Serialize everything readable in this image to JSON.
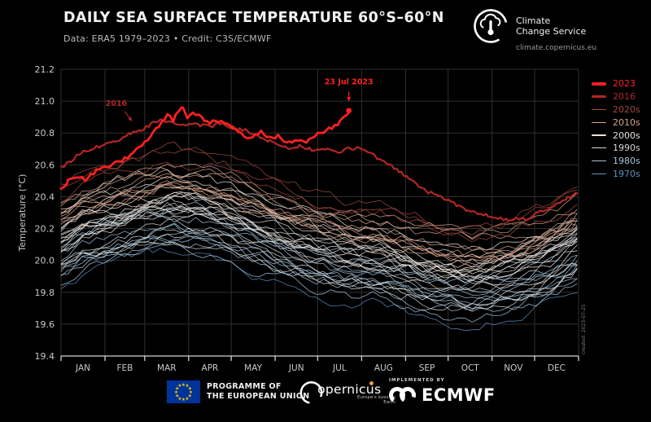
{
  "logo": {
    "name_line1": "Climate",
    "name_line2": "Change Service",
    "url": "climate.copernicus.eu"
  },
  "footer": {
    "eu_label_line1": "PROGRAMME OF",
    "eu_label_line2": "THE EUROPEAN UNION",
    "copernicus_word": "opernicus",
    "copernicus_tagline": "Europe's eyes on Earth",
    "implemented_by": "IMPLEMENTED BY",
    "ecmwf": "ECMWF"
  },
  "chart_data": {
    "type": "line",
    "title": "DAILY SEA SURFACE TEMPERATURE 60°S–60°N",
    "subtitle": "Data: ERA5 1979–2023 • Credit: C3S/ECMWF",
    "xlabel": "",
    "ylabel": "Temperature (°C)",
    "ylim": [
      19.4,
      21.2
    ],
    "ytick_step": 0.2,
    "grid": true,
    "legend_position": "right-outside",
    "watermark": "created: 2023-07-25",
    "x_months": [
      "JAN",
      "FEB",
      "MAR",
      "APR",
      "MAY",
      "JUN",
      "JUL",
      "AUG",
      "SEP",
      "OCT",
      "NOV",
      "DEC"
    ],
    "month_start_days": [
      1,
      32,
      60,
      91,
      121,
      152,
      182,
      213,
      244,
      274,
      305,
      335,
      366
    ],
    "legend": [
      {
        "label": "2023",
        "color": "#ff2020",
        "weight": 4
      },
      {
        "label": "2016",
        "color": "#b42525",
        "weight": 3
      },
      {
        "label": "2020s",
        "color": "#a34a40",
        "weight": 1.2
      },
      {
        "label": "2010s",
        "color": "#d8a48e",
        "weight": 1.2
      },
      {
        "label": "2000s",
        "color": "#eae1da",
        "weight": 1.2
      },
      {
        "label": "1990s",
        "color": "#d3d7d8",
        "weight": 1.2
      },
      {
        "label": "1980s",
        "color": "#a6c6de",
        "weight": 1.2
      },
      {
        "label": "1970s",
        "color": "#5e90c1",
        "weight": 1.2
      }
    ],
    "annotations": [
      {
        "text": "2016",
        "color": "#b42525",
        "text_day": 40,
        "text_val": 20.97,
        "arrow": {
          "x1_day": 46,
          "y1": 20.935,
          "x2_day": 51,
          "y2": 20.875
        }
      },
      {
        "text": "23 Jul 2023",
        "color": "#ff2020",
        "text_day": 204,
        "text_val": 21.105,
        "arrow": {
          "x1_day": 204,
          "y1": 21.06,
          "x2_day": 204,
          "y2": 21.0
        }
      }
    ],
    "series": [
      {
        "name": "2023",
        "color": "#ff2020",
        "width": 2.8,
        "end_dot": true,
        "points": [
          [
            1,
            20.44
          ],
          [
            6,
            20.5
          ],
          [
            12,
            20.52
          ],
          [
            18,
            20.51
          ],
          [
            24,
            20.55
          ],
          [
            30,
            20.58
          ],
          [
            36,
            20.6
          ],
          [
            42,
            20.62
          ],
          [
            48,
            20.65
          ],
          [
            54,
            20.69
          ],
          [
            60,
            20.74
          ],
          [
            66,
            20.8
          ],
          [
            72,
            20.86
          ],
          [
            76,
            20.91
          ],
          [
            80,
            20.88
          ],
          [
            84,
            20.94
          ],
          [
            87,
            20.96
          ],
          [
            90,
            20.9
          ],
          [
            94,
            20.93
          ],
          [
            98,
            20.91
          ],
          [
            102,
            20.88
          ],
          [
            106,
            20.86
          ],
          [
            110,
            20.88
          ],
          [
            114,
            20.87
          ],
          [
            118,
            20.85
          ],
          [
            122,
            20.83
          ],
          [
            126,
            20.81
          ],
          [
            130,
            20.78
          ],
          [
            134,
            20.77
          ],
          [
            138,
            20.79
          ],
          [
            142,
            20.81
          ],
          [
            146,
            20.78
          ],
          [
            150,
            20.76
          ],
          [
            154,
            20.78
          ],
          [
            158,
            20.75
          ],
          [
            162,
            20.74
          ],
          [
            166,
            20.76
          ],
          [
            170,
            20.75
          ],
          [
            174,
            20.74
          ],
          [
            178,
            20.77
          ],
          [
            182,
            20.79
          ],
          [
            186,
            20.81
          ],
          [
            190,
            20.83
          ],
          [
            194,
            20.84
          ],
          [
            198,
            20.87
          ],
          [
            201,
            20.9
          ],
          [
            204,
            20.94
          ]
        ]
      },
      {
        "name": "2016",
        "color": "#b42525",
        "width": 2.2,
        "end_dot": false,
        "points": [
          [
            1,
            20.58
          ],
          [
            8,
            20.62
          ],
          [
            15,
            20.68
          ],
          [
            22,
            20.7
          ],
          [
            29,
            20.72
          ],
          [
            36,
            20.74
          ],
          [
            43,
            20.76
          ],
          [
            50,
            20.8
          ],
          [
            57,
            20.82
          ],
          [
            64,
            20.85
          ],
          [
            71,
            20.89
          ],
          [
            78,
            20.87
          ],
          [
            85,
            20.84
          ],
          [
            92,
            20.86
          ],
          [
            99,
            20.85
          ],
          [
            106,
            20.84
          ],
          [
            113,
            20.86
          ],
          [
            120,
            20.84
          ],
          [
            127,
            20.82
          ],
          [
            134,
            20.81
          ],
          [
            141,
            20.78
          ],
          [
            148,
            20.75
          ],
          [
            155,
            20.72
          ],
          [
            162,
            20.7
          ],
          [
            169,
            20.72
          ],
          [
            176,
            20.7
          ],
          [
            183,
            20.69
          ],
          [
            190,
            20.7
          ],
          [
            197,
            20.68
          ],
          [
            204,
            20.7
          ],
          [
            211,
            20.71
          ],
          [
            218,
            20.68
          ],
          [
            225,
            20.64
          ],
          [
            232,
            20.6
          ],
          [
            239,
            20.56
          ],
          [
            246,
            20.52
          ],
          [
            253,
            20.47
          ],
          [
            260,
            20.43
          ],
          [
            267,
            20.4
          ],
          [
            274,
            20.38
          ],
          [
            281,
            20.34
          ],
          [
            288,
            20.31
          ],
          [
            295,
            20.3
          ],
          [
            302,
            20.28
          ],
          [
            309,
            20.27
          ],
          [
            316,
            20.25
          ],
          [
            323,
            20.27
          ],
          [
            330,
            20.26
          ],
          [
            337,
            20.3
          ],
          [
            344,
            20.33
          ],
          [
            351,
            20.36
          ],
          [
            358,
            20.39
          ],
          [
            365,
            20.42
          ]
        ]
      }
    ],
    "background_decades": [
      {
        "name": "2020s",
        "color": "#a34a40",
        "years": 3,
        "mean": 20.38
      },
      {
        "name": "2010s",
        "color": "#d8a48e",
        "years": 9,
        "mean": 20.27
      },
      {
        "name": "2000s",
        "color": "#eae1da",
        "years": 10,
        "mean": 20.16
      },
      {
        "name": "1990s",
        "color": "#d3d7d8",
        "years": 10,
        "mean": 20.05
      },
      {
        "name": "1980s",
        "color": "#a6c6de",
        "years": 10,
        "mean": 19.95
      },
      {
        "name": "1970s",
        "color": "#5e90c1",
        "years": 1,
        "mean": 19.84
      }
    ],
    "seasonal_profile": [
      0.1,
      0.18,
      0.25,
      0.22,
      0.12,
      0.02,
      -0.05,
      -0.08,
      -0.16,
      -0.2,
      -0.16,
      -0.06
    ]
  }
}
